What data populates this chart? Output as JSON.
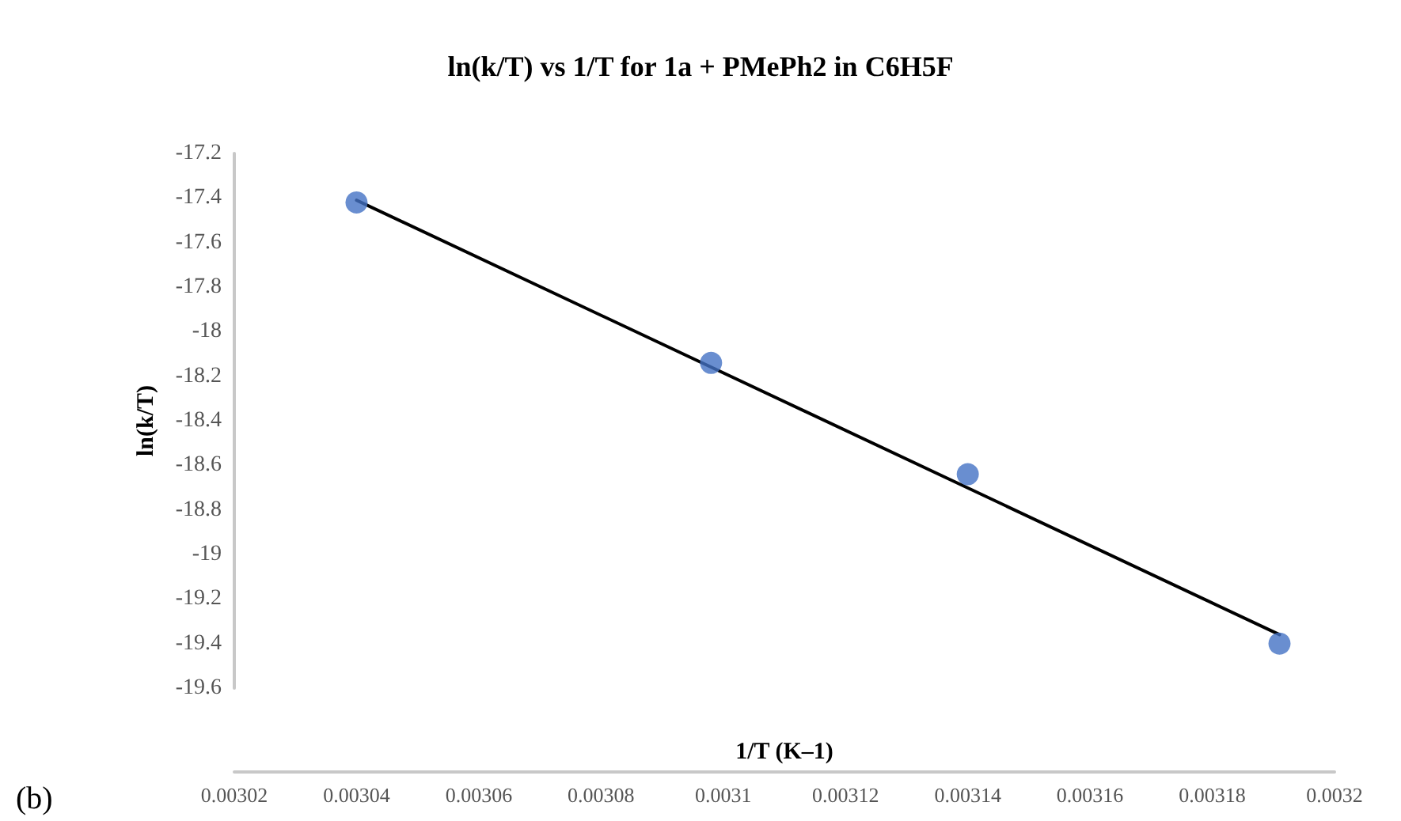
{
  "chart_data": {
    "type": "scatter",
    "title": "ln(k/T) vs 1/T for 1a + PMePh2 in C6H5F",
    "xlabel": "1/T (K–1)",
    "ylabel": "ln(k/T)",
    "annotations": [
      "(b)"
    ],
    "series": [
      {
        "color": "#4472c4",
        "marker": "circle",
        "x": [
          0.00304,
          0.003098,
          0.00314,
          0.003191
        ],
        "values": [
          -17.42,
          -18.14,
          -18.64,
          -19.4
        ]
      },
      {
        "type": "line",
        "color": "#000000",
        "marker": "none",
        "line_style": "solid",
        "x": [
          0.00304,
          0.003191
        ],
        "values": [
          -17.41,
          -19.36
        ]
      }
    ],
    "xlim": [
      0.00302,
      0.0032
    ],
    "xticks": [
      0.00302,
      0.00304,
      0.00306,
      0.00308,
      0.0031,
      0.00312,
      0.00314,
      0.00316,
      0.00318,
      0.0032
    ],
    "ylim": [
      -19.6,
      -17.2
    ],
    "yticks": [
      -19.6,
      -19.4,
      -19.2,
      -19,
      -18.8,
      -18.6,
      -18.4,
      -18.2,
      -18,
      -17.8,
      -17.6,
      -17.4,
      -17.2
    ],
    "grid": false
  }
}
